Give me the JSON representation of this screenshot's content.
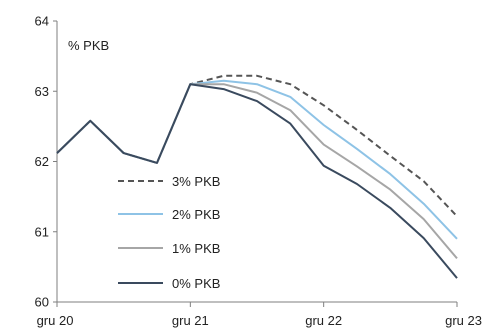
{
  "chart_data": {
    "type": "line",
    "title": "",
    "unit_label": "% PKB",
    "xlabel": "",
    "ylabel": "",
    "x_ticks": [
      "gru 20",
      "gru 21",
      "gru 22",
      "gru 23"
    ],
    "y_ticks": [
      "60",
      "61",
      "62",
      "63",
      "64"
    ],
    "ylim": [
      60,
      64
    ],
    "x": [
      "2020-12",
      "2021-03",
      "2021-06",
      "2021-09",
      "2021-12",
      "2022-03",
      "2022-06",
      "2022-09",
      "2022-12",
      "2023-03",
      "2023-06",
      "2023-09",
      "2023-12"
    ],
    "grid": false,
    "legend_position": "bottom-left",
    "series": [
      {
        "name": "3% PKB",
        "color": "#555555",
        "dash": "dashed",
        "values": [
          62.12,
          62.58,
          62.12,
          61.98,
          63.1,
          63.22,
          63.22,
          63.1,
          62.8,
          62.45,
          62.08,
          61.72,
          61.22
        ]
      },
      {
        "name": "2% PKB",
        "color": "#8ec3e6",
        "dash": "solid",
        "values": [
          62.12,
          62.58,
          62.12,
          61.98,
          63.1,
          63.15,
          63.1,
          62.92,
          62.52,
          62.18,
          61.82,
          61.4,
          60.9
        ]
      },
      {
        "name": "1% PKB",
        "color": "#a6a6a6",
        "dash": "solid",
        "values": [
          62.12,
          62.58,
          62.12,
          61.98,
          63.1,
          63.1,
          62.98,
          62.73,
          62.24,
          61.93,
          61.6,
          61.18,
          60.62
        ]
      },
      {
        "name": "0% PKB",
        "color": "#3a4a5e",
        "dash": "solid",
        "values": [
          62.12,
          62.58,
          62.12,
          61.98,
          63.1,
          63.03,
          62.86,
          62.54,
          61.94,
          61.68,
          61.34,
          60.91,
          60.34
        ]
      }
    ]
  }
}
